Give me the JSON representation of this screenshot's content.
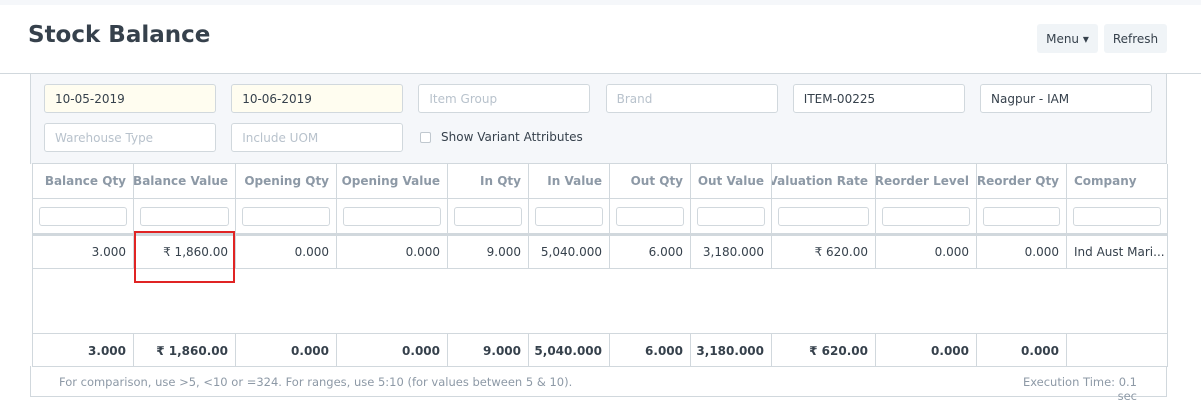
{
  "header": {
    "title": "Stock Balance",
    "buttons": [
      "Menu",
      "Refresh"
    ]
  },
  "filters": [
    {
      "value": "10-05-2019"
    },
    {
      "value": "10-06-2019"
    },
    {
      "placeholder": "Item Group"
    },
    {
      "placeholder": "Brand"
    },
    {
      "value": "ITEM-00225"
    },
    {
      "value": "Nagpur - IAM"
    },
    {
      "placeholder": "Warehouse Type"
    },
    {
      "placeholder": "Include UOM"
    }
  ],
  "checkbox_label": "Show Variant Attributes",
  "table": {
    "columns": [
      "Balance Qty",
      "Balance Value",
      "Opening Qty",
      "Opening Value",
      "In Qty",
      "In Value",
      "Out Qty",
      "Out Value",
      "Valuation Rate",
      "Reorder Level",
      "Reorder Qty",
      "Company"
    ],
    "rows": [
      [
        "3.000",
        "₹ 1,860.00",
        "0.000",
        "0.000",
        "9.000",
        "5,040.000",
        "6.000",
        "3,180.000",
        "₹ 620.00",
        "0.000",
        "0.000",
        "Ind Aust Mari..."
      ]
    ],
    "totals": [
      "3.000",
      "₹ 1,860.00",
      "0.000",
      "0.000",
      "9.000",
      "5,040.000",
      "6.000",
      "3,180.000",
      "₹ 620.00",
      "0.000",
      "0.000",
      null
    ]
  },
  "footer": {
    "help": "For comparison, use >5, <10 or =324. For ranges, use 5:10 (for values between 5 & 10).",
    "execution_time": "Execution Time: 0.1 sec"
  }
}
